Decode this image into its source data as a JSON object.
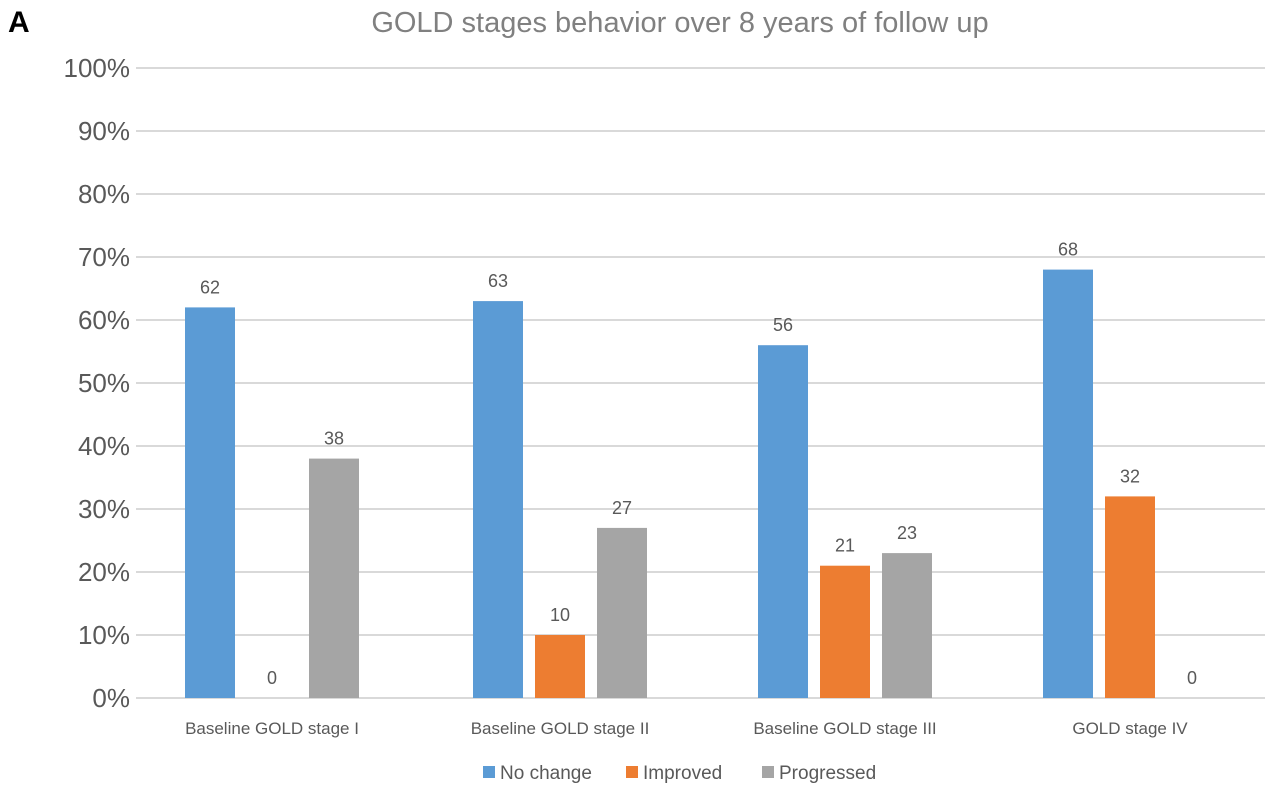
{
  "panel_label": "A",
  "colors": {
    "No change": "#5b9bd5",
    "Improved": "#ed7d31",
    "Progressed": "#a5a5a5",
    "grid": "#d9d9d9",
    "text": "#595959",
    "title": "#808080"
  },
  "chart_data": {
    "type": "bar",
    "title": "GOLD stages behavior over 8 years of follow up",
    "xlabel": "",
    "ylabel": "",
    "categories": [
      "Baseline GOLD stage I",
      "Baseline GOLD stage II",
      "Baseline GOLD stage III",
      "GOLD stage IV"
    ],
    "series": [
      {
        "name": "No change",
        "values": [
          62,
          63,
          56,
          68
        ]
      },
      {
        "name": "Improved",
        "values": [
          0,
          10,
          21,
          32
        ]
      },
      {
        "name": "Progressed",
        "values": [
          38,
          27,
          23,
          0
        ]
      }
    ],
    "ylim": [
      0,
      100
    ],
    "yticks": [
      "0%",
      "10%",
      "20%",
      "30%",
      "40%",
      "50%",
      "60%",
      "70%",
      "80%",
      "90%",
      "100%"
    ],
    "grid": true,
    "legend_position": "bottom",
    "data_labels": true
  }
}
